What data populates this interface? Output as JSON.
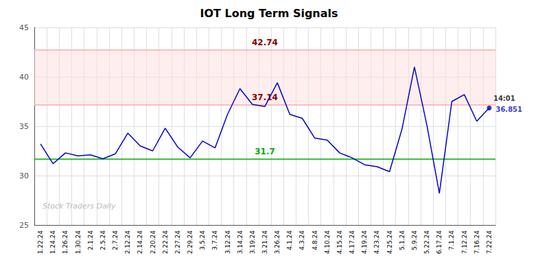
{
  "chart_data": {
    "type": "line",
    "title": "IOT Long Term Signals",
    "categories": [
      "1.22.24",
      "1.24.24",
      "1.26.24",
      "1.30.24",
      "2.1.24",
      "2.5.24",
      "2.7.24",
      "2.12.24",
      "2.14.24",
      "2.20.24",
      "2.22.24",
      "2.27.24",
      "2.29.24",
      "3.5.24",
      "3.7.24",
      "3.12.24",
      "3.14.24",
      "3.19.24",
      "3.21.24",
      "3.26.24",
      "4.1.24",
      "4.3.24",
      "4.8.24",
      "4.10.24",
      "4.15.24",
      "4.17.24",
      "4.19.24",
      "4.23.24",
      "4.25.24",
      "5.1.24",
      "5.9.24",
      "5.22.24",
      "6.17.24",
      "7.1.24",
      "7.12.24",
      "7.16.24",
      "7.22.24"
    ],
    "values": [
      33.2,
      31.2,
      32.3,
      32.0,
      32.1,
      31.7,
      32.2,
      34.3,
      33.0,
      32.5,
      34.8,
      32.9,
      31.8,
      33.5,
      32.8,
      36.2,
      38.8,
      37.2,
      37.0,
      39.4,
      36.2,
      35.8,
      33.8,
      33.6,
      32.3,
      31.8,
      31.1,
      30.9,
      30.4,
      34.7,
      41.0,
      35.1,
      28.2,
      37.5,
      38.2,
      35.5,
      36.851
    ],
    "color": "#0000cc",
    "ylim": [
      25,
      45
    ],
    "yticks": [
      25,
      30,
      35,
      40,
      45
    ],
    "grid": true,
    "hlines": [
      {
        "value": 42.74,
        "label": "42.74",
        "color": "#ffaaaa",
        "label_color": "#8b0000"
      },
      {
        "value": 37.14,
        "label": "37.14",
        "color": "#ffaaaa",
        "label_color": "#8b0000"
      },
      {
        "value": 31.7,
        "label": "31.7",
        "color": "#00aa00",
        "label_color": "#00aa00"
      }
    ],
    "band": {
      "from": 37.14,
      "to": 42.74,
      "color": "#ffdddd"
    },
    "annotations": [
      {
        "text": "14:01",
        "x": "7.22.24",
        "y": 36.851,
        "color": "#000000"
      },
      {
        "text": "36.851",
        "x": "7.22.24",
        "y": 36.851,
        "color": "#0000cc",
        "marker": "circle"
      }
    ],
    "watermark": {
      "text": "Stock Traders Daily",
      "color": "#bbbbbb"
    }
  }
}
